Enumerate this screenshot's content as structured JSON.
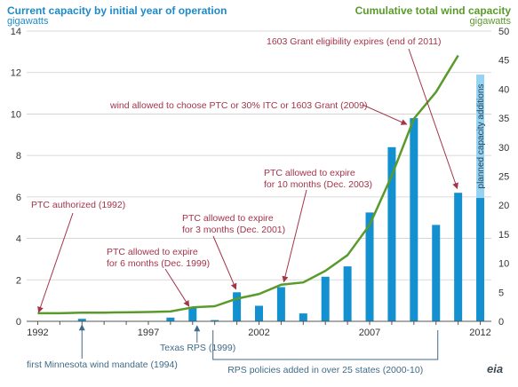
{
  "chart_data": {
    "type": "bar",
    "title_left": "Current capacity by initial year of operation",
    "unit_left": "gigawatts",
    "title_right": "Cumulative total wind capacity",
    "unit_right": "gigawatts",
    "x_ticks": [
      "1992",
      "1997",
      "2002",
      "2007",
      "2012"
    ],
    "y_left_ticks": [
      "0",
      "2",
      "4",
      "6",
      "8",
      "10",
      "12",
      "14"
    ],
    "y_right_ticks": [
      "0",
      "5",
      "10",
      "15",
      "20",
      "25",
      "30",
      "35",
      "40",
      "45",
      "50"
    ],
    "ylim_left": [
      0,
      14
    ],
    "ylim_right": [
      0,
      50
    ],
    "xlim": [
      1991.5,
      2012.5
    ],
    "bars": {
      "years": [
        1992,
        1993,
        1994,
        1995,
        1996,
        1997,
        1998,
        1999,
        2000,
        2001,
        2002,
        2003,
        2004,
        2005,
        2006,
        2007,
        2008,
        2009,
        2010,
        2011,
        2012
      ],
      "values": [
        0.01,
        0.02,
        0.12,
        0.02,
        0.02,
        0.02,
        0.18,
        0.65,
        0.06,
        1.4,
        0.75,
        1.65,
        0.38,
        2.15,
        2.65,
        5.25,
        8.4,
        9.8,
        4.65,
        6.2,
        5.95
      ]
    },
    "planned": {
      "year": 2012,
      "value": 5.95,
      "top": 11.9,
      "label": "planned capacity additions"
    },
    "cumulative": {
      "years": [
        1992,
        1993,
        1994,
        1995,
        1996,
        1997,
        1998,
        1999,
        2000,
        2001,
        2002,
        2003,
        2004,
        2005,
        2006,
        2007,
        2008,
        2009,
        2010,
        2011
      ],
      "values": [
        1.4,
        1.4,
        1.5,
        1.5,
        1.55,
        1.6,
        1.7,
        2.4,
        2.6,
        3.9,
        4.7,
        6.3,
        6.7,
        8.7,
        11.4,
        16.6,
        25.1,
        34.9,
        39.5,
        45.8
      ]
    },
    "annotations": [
      {
        "text": "1603 Grant eligibility expires (end of 2011)",
        "year": 2011
      },
      {
        "text": "wind allowed to choose PTC or 30% ITC or 1603 Grant (2009)",
        "year": 2009
      },
      {
        "text": "PTC allowed to expire",
        "text2": "for 10 months (Dec. 2003)",
        "year": 2003
      },
      {
        "text": "PTC authorized (1992)",
        "year": 1992
      },
      {
        "text": "PTC allowed to expire",
        "text2": "for 3 months (Dec. 2001)",
        "year": 2001
      },
      {
        "text": "PTC allowed to expire",
        "text2": "for 6 months (Dec. 1999)",
        "year": 1999
      },
      {
        "text": "Texas RPS (1999)",
        "year": 1999
      },
      {
        "text": "first Minnesota wind mandate (1994)",
        "year": 1994
      },
      {
        "text": "RPS policies added in over 25 states (2000-10)",
        "year_from": 2000,
        "year_to": 2010
      }
    ],
    "colors": {
      "bar": "#1290cf",
      "planned": "#96d3f2",
      "line": "#5a9a2b",
      "policy": "#a3344a",
      "rps": "#3f6b88",
      "grid": "#cfcfcf"
    }
  }
}
